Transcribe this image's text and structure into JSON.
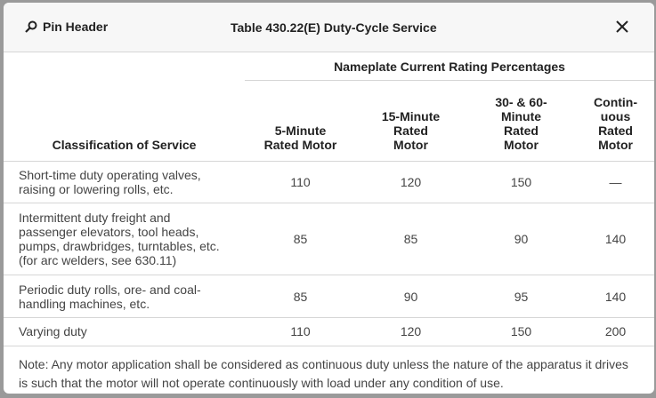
{
  "header": {
    "pin_button": "Pin Header",
    "title": "Table 430.22(E) Duty-Cycle Service"
  },
  "table": {
    "group_header": "Nameplate Current Rating Percentages",
    "columns": [
      [
        "Classification of Service"
      ],
      [
        "5-Minute",
        "Rated Motor"
      ],
      [
        "15-Minute",
        "Rated",
        "Motor"
      ],
      [
        "30- & 60-",
        "Minute",
        "Rated",
        "Motor"
      ],
      [
        "Contin-",
        "uous",
        "Rated",
        "Motor"
      ]
    ],
    "rows": [
      [
        [
          "Short-time duty operating valves,",
          "raising or lowering rolls, etc."
        ],
        "110",
        "120",
        "150",
        "—"
      ],
      [
        [
          "Intermittent duty freight and",
          "passenger elevators, tool heads,",
          "pumps, drawbridges, turntables, etc.",
          "(for arc welders, see 630.11)"
        ],
        "85",
        "85",
        "90",
        "140"
      ],
      [
        [
          "Periodic duty rolls, ore- and coal-",
          "handling machines, etc."
        ],
        "85",
        "90",
        "95",
        "140"
      ],
      [
        [
          "Varying duty"
        ],
        "110",
        "120",
        "150",
        "200"
      ]
    ],
    "note": "Note: Any motor application shall be considered as continuous duty unless the nature of the apparatus it drives is such that the motor will not operate continuously with load under any condition of use."
  }
}
